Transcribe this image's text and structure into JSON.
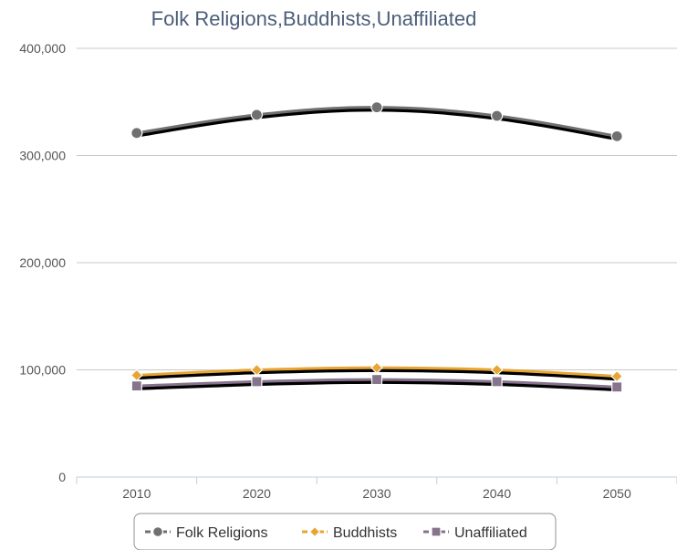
{
  "chart_data": {
    "type": "line",
    "title": "Folk Religions,Buddhists,Unaffiliated",
    "categories": [
      "2010",
      "2020",
      "2030",
      "2040",
      "2050"
    ],
    "ylim": [
      0,
      400000
    ],
    "yticks": [
      0,
      100000,
      200000,
      300000,
      400000
    ],
    "ytick_labels": [
      "0",
      "100,000",
      "200,000",
      "300,000",
      "400,000"
    ],
    "grid": true,
    "legend_position": "bottom",
    "series": [
      {
        "name": "Folk Religions",
        "values": [
          321000,
          338000,
          345000,
          337000,
          318000
        ],
        "color": "#707070",
        "marker": "circle"
      },
      {
        "name": "Buddhists",
        "values": [
          95000,
          100000,
          102000,
          100000,
          94000
        ],
        "color": "#e8a534",
        "marker": "diamond"
      },
      {
        "name": "Unaffiliated",
        "values": [
          85000,
          89000,
          91000,
          89000,
          84000
        ],
        "color": "#86738c",
        "marker": "square"
      }
    ]
  }
}
